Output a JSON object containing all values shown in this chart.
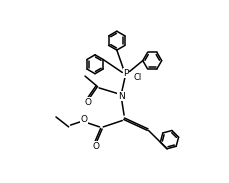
{
  "bg_color": "#ffffff",
  "line_color": "#000000",
  "line_width": 1.1,
  "figsize": [
    2.3,
    1.83
  ],
  "dpi": 100,
  "r_hex": 0.52,
  "xlim": [
    0.0,
    10.0
  ],
  "ylim": [
    0.5,
    10.5
  ]
}
